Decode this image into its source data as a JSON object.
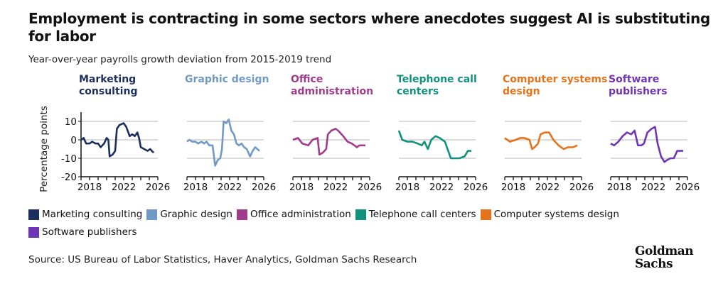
{
  "title": "Employment is contracting in some sectors where anecdotes suggest AI is substituting for labor",
  "subtitle": "Year-over-year payrolls growth deviation from 2015-2019 trend",
  "source": "Source: US Bureau of Labor Statistics, Haver Analytics, Goldman Sachs Research",
  "logo": {
    "line1": "Goldman",
    "line2": "Sachs"
  },
  "chart_data": {
    "type": "line",
    "ylabel": "Percentage points",
    "ylim": [
      -20,
      15
    ],
    "yticks": [
      "10",
      "0",
      "-10",
      "-20"
    ],
    "xlim": [
      2017,
      2026
    ],
    "xticks": [
      "2018",
      "2022",
      "2026"
    ],
    "grid": true,
    "legend_placement": "bottom",
    "panels": [
      {
        "name": "Marketing consulting",
        "title": [
          "Marketing",
          "consulting"
        ],
        "color": "#1b2f5e",
        "x": [
          2017,
          2017.3,
          2017.6,
          2018,
          2018.3,
          2018.7,
          2019,
          2019.3,
          2019.7,
          2020,
          2020.2,
          2020.35,
          2020.7,
          2021,
          2021.2,
          2021.5,
          2022,
          2022.3,
          2022.7,
          2023,
          2023.3,
          2023.6,
          2023.8,
          2024,
          2024.4,
          2024.8,
          2025.1,
          2025.5
        ],
        "y": [
          0,
          1,
          -2,
          -2,
          -1,
          -2,
          -2,
          -4,
          -2,
          1,
          0,
          -9,
          -8,
          -6,
          6,
          8,
          9,
          7,
          2,
          3,
          2,
          4,
          1,
          -4,
          -5,
          -6,
          -5,
          -7
        ]
      },
      {
        "name": "Graphic design",
        "title": [
          "Graphic design"
        ],
        "color": "#7199c8",
        "x": [
          2017,
          2017.3,
          2017.6,
          2018,
          2018.3,
          2018.7,
          2019,
          2019.3,
          2019.6,
          2020,
          2020.3,
          2020.6,
          2020.9,
          2021.1,
          2021.3,
          2021.6,
          2021.9,
          2022.2,
          2022.5,
          2022.8,
          2023.1,
          2023.4,
          2023.7,
          2024,
          2024.4,
          2024.7,
          2025,
          2025.5
        ],
        "y": [
          -1,
          0,
          -1,
          -1,
          -2,
          -1,
          -2,
          -1,
          -3,
          -3,
          -14,
          -11,
          -10,
          -5,
          10,
          9,
          11,
          5,
          3,
          -2,
          -3,
          -2,
          -4,
          -5,
          -9,
          -6,
          -4,
          -6
        ]
      },
      {
        "name": "Office administration",
        "title": [
          "Office",
          "administration"
        ],
        "color": "#a23b8c",
        "x": [
          2017,
          2017.6,
          2018.1,
          2018.8,
          2019.3,
          2019.9,
          2020.1,
          2020.5,
          2020.9,
          2021.1,
          2021.5,
          2022,
          2022.3,
          2022.9,
          2023.4,
          2023.9,
          2024.5,
          2024.8,
          2025.5
        ],
        "y": [
          0,
          1,
          -2,
          -3,
          0,
          1,
          -8,
          -7,
          -5,
          3,
          5,
          6,
          5,
          2,
          -1,
          -2,
          -4,
          -3,
          -3
        ]
      },
      {
        "name": "Telephone call centers",
        "title": [
          "Telephone call",
          "centers"
        ],
        "color": "#12917f",
        "x": [
          2017,
          2017.4,
          2018,
          2018.6,
          2019.2,
          2019.7,
          2020,
          2020.4,
          2020.8,
          2021.3,
          2021.8,
          2022.4,
          2023.1,
          2023.6,
          2024.1,
          2024.7,
          2025.1,
          2025.5
        ],
        "y": [
          5,
          0,
          -1,
          -1,
          -2,
          -3,
          -1,
          -5,
          0,
          2,
          1,
          -1,
          -10,
          -10,
          -10,
          -9,
          -6,
          -6
        ]
      },
      {
        "name": "Computer systems design",
        "title": [
          "Computer systems",
          "design"
        ],
        "color": "#e5731c",
        "x": [
          2017,
          2017.6,
          2018.3,
          2018.8,
          2019.3,
          2019.9,
          2020.2,
          2020.5,
          2020.9,
          2021.2,
          2021.7,
          2022.2,
          2022.7,
          2023.3,
          2023.9,
          2024.4,
          2025,
          2025.5
        ],
        "y": [
          1,
          -1,
          0,
          1,
          1,
          0,
          -5,
          -4,
          -2,
          3,
          4,
          4,
          0,
          -3,
          -5,
          -4,
          -4,
          -3
        ]
      },
      {
        "name": "Software publishers",
        "title": [
          "Software",
          "publishers"
        ],
        "color": "#7035b5",
        "x": [
          2017,
          2017.4,
          2017.9,
          2018.4,
          2018.9,
          2019.4,
          2019.8,
          2020.2,
          2020.6,
          2020.9,
          2021.3,
          2021.8,
          2022.2,
          2022.5,
          2022.9,
          2023.3,
          2023.6,
          2024,
          2024.4,
          2024.8,
          2025.2,
          2025.5
        ],
        "y": [
          -2,
          -3,
          -1,
          2,
          4,
          3,
          5,
          -3,
          -3,
          -2,
          4,
          6,
          7,
          -2,
          -9,
          -12,
          -11,
          -10,
          -10,
          -6,
          -6,
          -6
        ]
      }
    ]
  }
}
